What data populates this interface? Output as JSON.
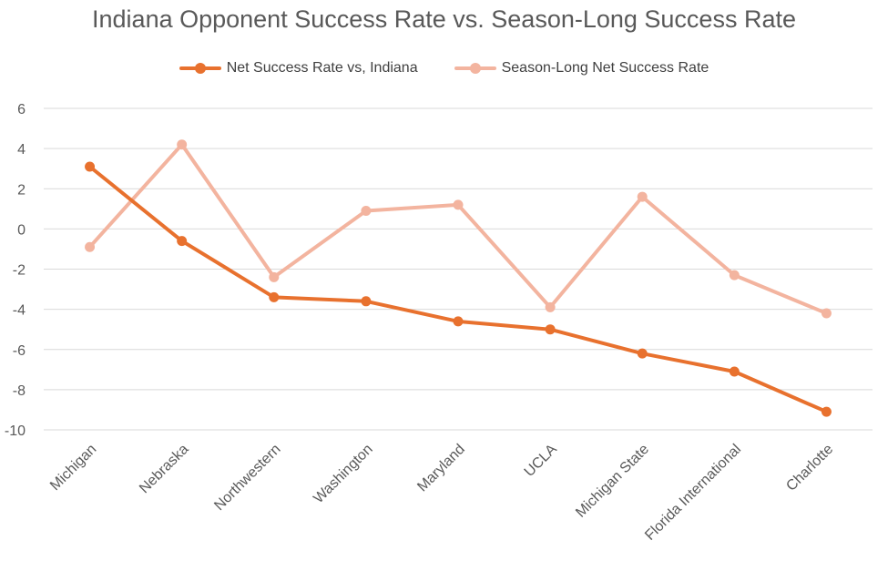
{
  "chart_data": {
    "type": "line",
    "title": "Indiana Opponent Success Rate vs. Season-Long Success Rate",
    "categories": [
      "Michigan",
      "Nebraska",
      "Northwestern",
      "Washington",
      "Maryland",
      "UCLA",
      "Michigan State",
      "Florida International",
      "Charlotte"
    ],
    "series": [
      {
        "name": "Net  Success Rate vs, Indiana",
        "color": "#E8712E",
        "values": [
          3.1,
          -0.6,
          -3.4,
          -3.6,
          -4.6,
          -5.0,
          -6.2,
          -7.1,
          -9.1
        ]
      },
      {
        "name": "Season-Long Net Success Rate",
        "color": "#F3B49F",
        "values": [
          -0.9,
          4.2,
          -2.4,
          0.9,
          1.2,
          -3.9,
          1.6,
          -2.3,
          -4.2
        ]
      }
    ],
    "ylim": [
      -10,
      6
    ],
    "yticks": [
      "6",
      "4",
      "2",
      "0",
      "-2",
      "-4",
      "-6",
      "-8",
      "-10"
    ],
    "grid": true,
    "legend_position": "top"
  }
}
